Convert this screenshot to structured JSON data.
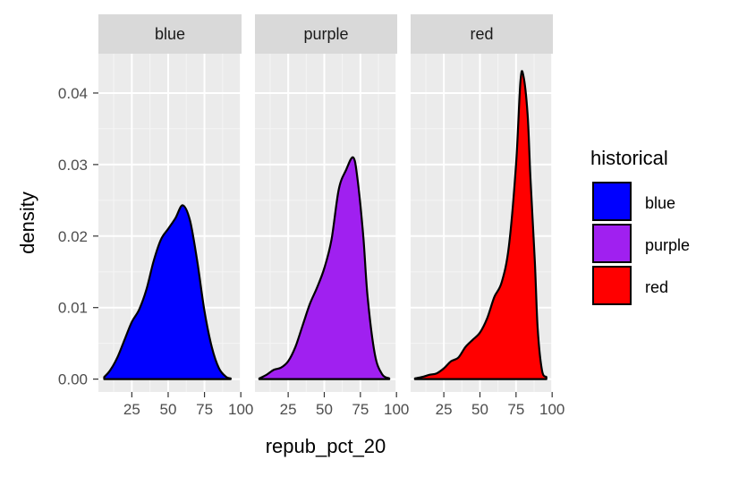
{
  "chart_data": {
    "type": "area",
    "title": "",
    "xlabel": "repub_pct_20",
    "ylabel": "density",
    "xlim": [
      0,
      100
    ],
    "ylim": [
      0,
      0.045
    ],
    "x_ticks": [
      25,
      50,
      75,
      100
    ],
    "x_tick_labels": [
      "25",
      "50",
      "75",
      "100"
    ],
    "y_ticks": [
      0.0,
      0.01,
      0.02,
      0.03,
      0.04
    ],
    "y_tick_labels": [
      "0.00",
      "0.01",
      "0.02",
      "0.03",
      "0.04"
    ],
    "grid": true,
    "legend": {
      "title": "historical",
      "position": "right"
    },
    "panels": [
      {
        "strip": "blue",
        "color": "#0000FF",
        "x": [
          6,
          10,
          15,
          20,
          25,
          30,
          35,
          40,
          45,
          50,
          55,
          60,
          65,
          70,
          75,
          80,
          85,
          90,
          93
        ],
        "y": [
          0.0003,
          0.0012,
          0.003,
          0.0055,
          0.008,
          0.0097,
          0.0125,
          0.0165,
          0.0195,
          0.021,
          0.0225,
          0.0243,
          0.0222,
          0.0165,
          0.0095,
          0.0045,
          0.0015,
          0.0003,
          0.0001
        ]
      },
      {
        "strip": "purple",
        "color": "#A020F0",
        "x": [
          5,
          10,
          15,
          20,
          25,
          30,
          35,
          40,
          45,
          50,
          55,
          60,
          65,
          70,
          73,
          77,
          80,
          85,
          90,
          95
        ],
        "y": [
          0.0001,
          0.0006,
          0.0013,
          0.0016,
          0.0025,
          0.0045,
          0.0075,
          0.0105,
          0.0128,
          0.0155,
          0.0195,
          0.0265,
          0.0292,
          0.031,
          0.028,
          0.02,
          0.0115,
          0.0035,
          0.0007,
          0.0001
        ]
      },
      {
        "strip": "red",
        "color": "#FF0000",
        "x": [
          5,
          10,
          15,
          20,
          25,
          30,
          35,
          40,
          45,
          50,
          55,
          60,
          65,
          70,
          75,
          78,
          80,
          83,
          85,
          88,
          90,
          93,
          96
        ],
        "y": [
          0.0001,
          0.0003,
          0.0006,
          0.0008,
          0.0015,
          0.0025,
          0.003,
          0.0045,
          0.0055,
          0.0065,
          0.0085,
          0.0115,
          0.0135,
          0.0185,
          0.03,
          0.0415,
          0.0425,
          0.037,
          0.028,
          0.0165,
          0.007,
          0.0012,
          0.0003
        ]
      }
    ]
  }
}
